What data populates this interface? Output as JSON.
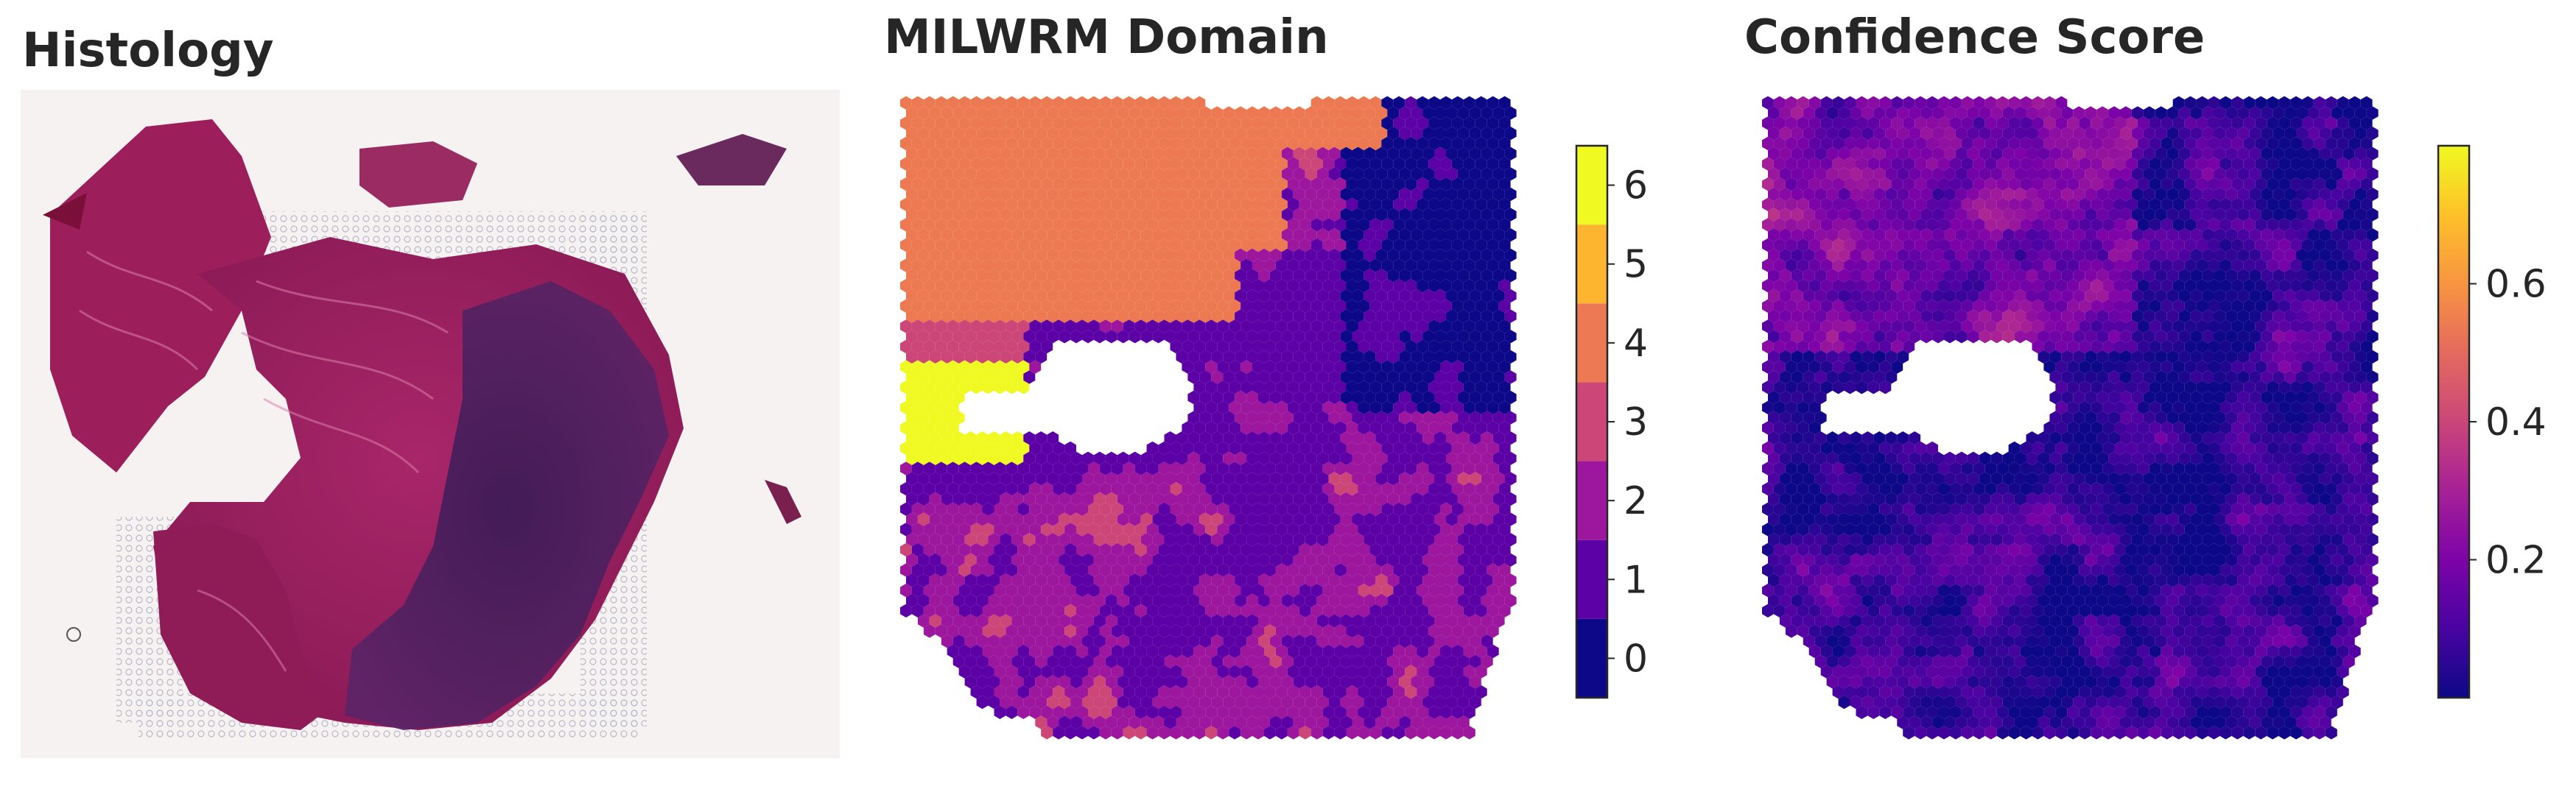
{
  "chart_data": [
    {
      "type": "image",
      "title": "Histology",
      "image_description_name": "he-stained-tissue-section"
    },
    {
      "type": "heatmap",
      "title": "MILWRM Domain",
      "colorbar": {
        "kind": "discrete",
        "ticks": [
          "0",
          "1",
          "2",
          "3",
          "4",
          "5",
          "6"
        ],
        "colors": [
          "#0d0887",
          "#5c01a6",
          "#9c179e",
          "#cc4778",
          "#ed7953",
          "#fdb42f",
          "#f0f921"
        ]
      }
    },
    {
      "type": "heatmap",
      "title": "Confidence Score",
      "colorbar": {
        "kind": "continuous",
        "colormap": "plasma",
        "range": [
          0.0,
          0.8
        ],
        "ticks": [
          "0.2",
          "0.4",
          "0.6"
        ],
        "tick_values": [
          0.2,
          0.4,
          0.6
        ]
      }
    }
  ]
}
